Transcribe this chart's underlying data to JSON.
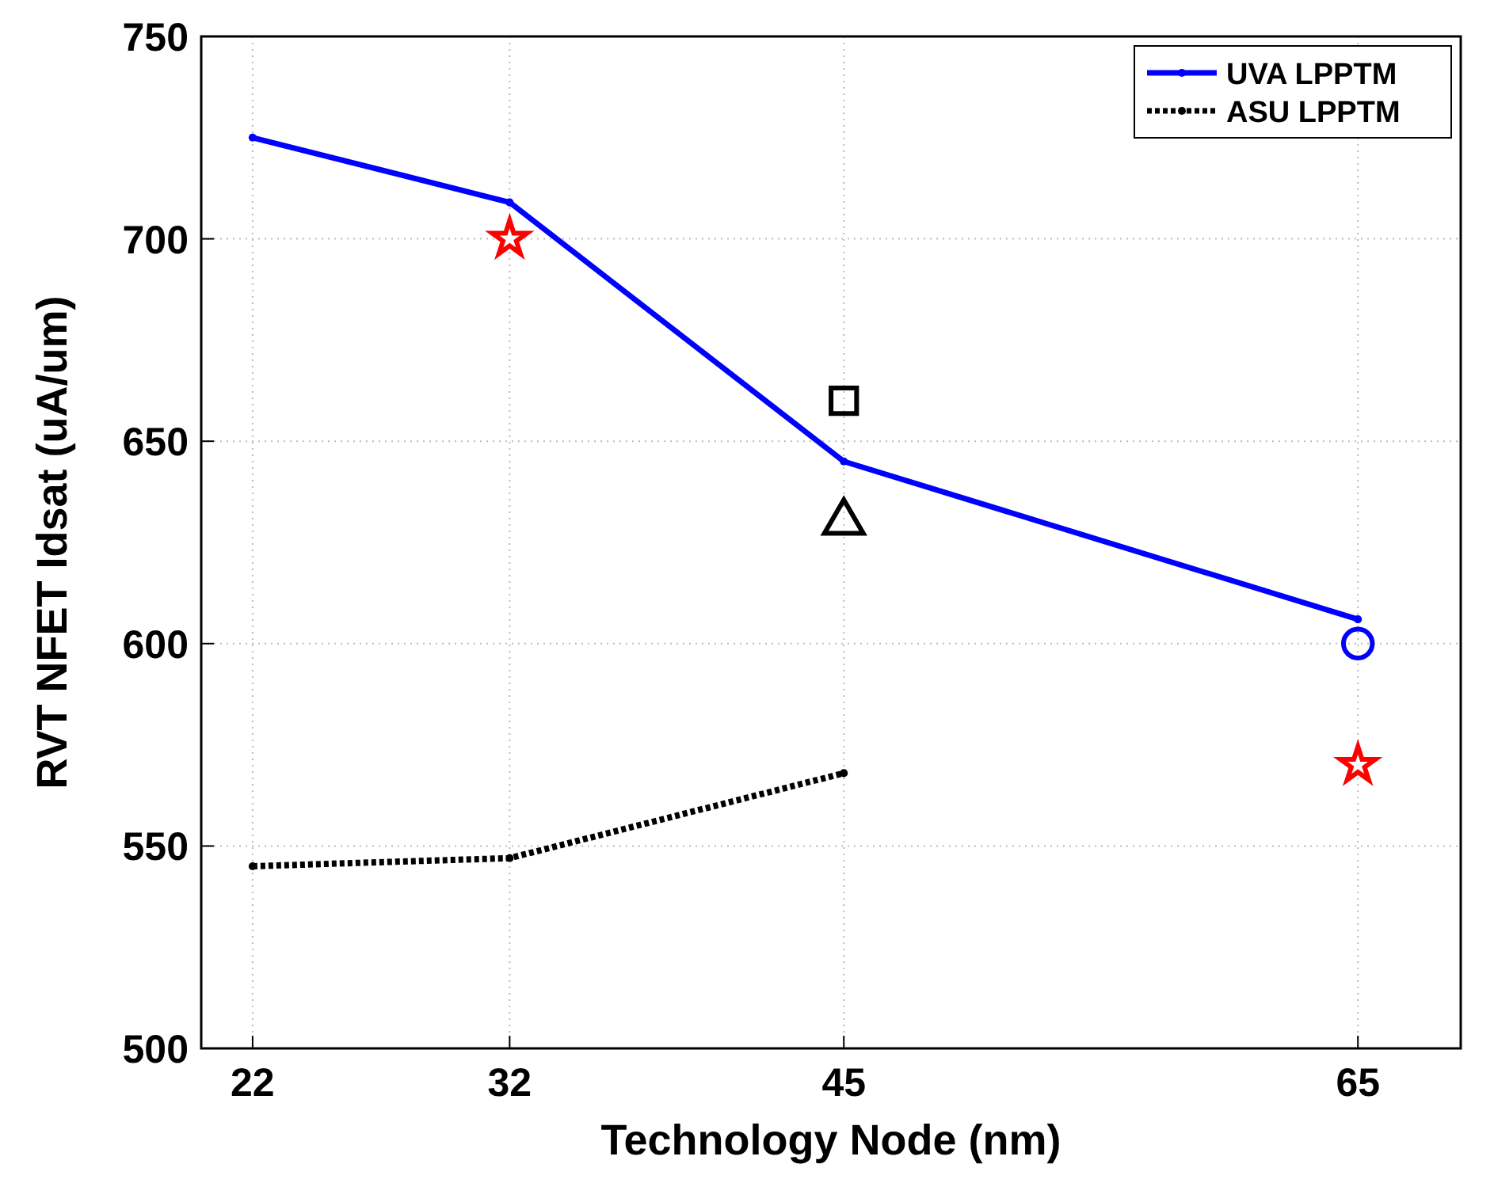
{
  "chart_data": {
    "type": "line",
    "xlabel": "Technology Node (nm)",
    "ylabel": "RVT NFET Idsat (uA/um)",
    "xlim": [
      20,
      69
    ],
    "xticks": [
      22,
      32,
      45,
      65
    ],
    "ylim": [
      500,
      750
    ],
    "yticks": [
      500,
      550,
      600,
      650,
      700,
      750
    ],
    "grid": true,
    "legend": "top right",
    "series": [
      {
        "name": "UVA LPPTM",
        "color": "#0000ff",
        "marker": "circle",
        "line_style": "solid",
        "x": [
          22,
          32,
          45,
          65
        ],
        "values": [
          725,
          709,
          645,
          606
        ]
      },
      {
        "name": "ASU LPPTM",
        "color": "#000000",
        "marker": "circle",
        "line_style": "dotted",
        "x": [
          22,
          32,
          45
        ],
        "values": [
          545,
          547,
          568
        ]
      },
      {
        "type": "scatter",
        "color": "#0000ff",
        "marker": "circle",
        "x": [
          65
        ],
        "values": [
          600
        ]
      },
      {
        "type": "scatter",
        "color": "#ff0000",
        "marker": "star",
        "x": [
          32,
          65
        ],
        "values": [
          700,
          570
        ]
      },
      {
        "type": "scatter",
        "color": "#000000",
        "marker": "square",
        "x": [
          45
        ],
        "values": [
          660
        ]
      },
      {
        "type": "scatter",
        "color": "#000000",
        "marker": "triangle",
        "x": [
          45
        ],
        "values": [
          630
        ]
      }
    ]
  }
}
